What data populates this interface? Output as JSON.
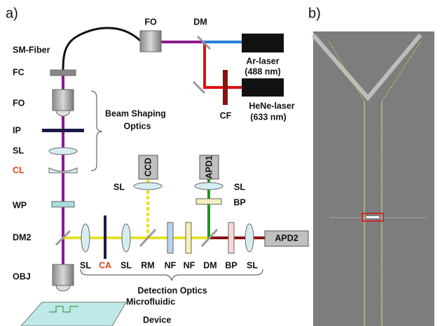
{
  "panel_a": {
    "label": "a)",
    "top": {
      "fo": "FO",
      "dm": "DM",
      "sm_fiber": "SM-Fiber",
      "ar_laser": [
        "Ar-laser",
        "(488 nm)"
      ],
      "hene_laser": [
        "HeNe-laser",
        "(633 nm)"
      ],
      "cf": "CF"
    },
    "left": [
      "FC",
      "FO",
      "IP",
      "SL",
      "CL",
      "WP",
      "DM2",
      "OBJ"
    ],
    "beam_shaping": [
      "Beam Shaping",
      "Optics"
    ],
    "ccd": "CCD",
    "apd1": "APD1",
    "sl_ccd": "SL",
    "sl_apd1": "SL",
    "bp_apd1": "BP",
    "apd2": "APD2",
    "bottom": [
      "SL",
      "CA",
      "SL",
      "RM",
      "NF",
      "NF",
      "DM",
      "BP",
      "SL"
    ],
    "detection": "Detection Optics",
    "device": [
      "Microfluidic",
      "Device"
    ]
  },
  "panel_b": {
    "label": "b)"
  }
}
